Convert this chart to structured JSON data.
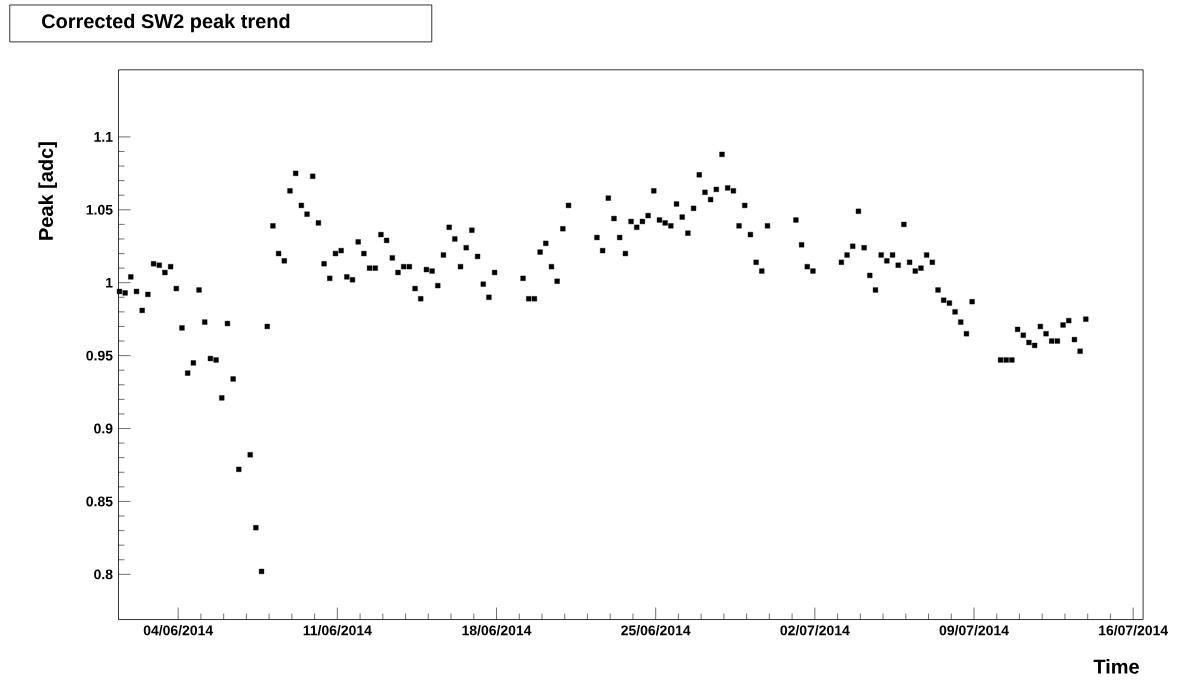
{
  "chart_data": {
    "type": "scatter",
    "title": "Corrected SW2 peak trend",
    "xlabel": "Time",
    "ylabel": "Peak [adc]",
    "marker": "square",
    "color": "#000000",
    "grid": false,
    "xlim": [
      "2014-06-01T09:00",
      "2014-07-16T10:30"
    ],
    "ylim": [
      0.769,
      1.146
    ],
    "xticks": [
      {
        "value": "2014-06-04",
        "label": "04/06/2014"
      },
      {
        "value": "2014-06-11",
        "label": "11/06/2014"
      },
      {
        "value": "2014-06-18",
        "label": "18/06/2014"
      },
      {
        "value": "2014-06-25",
        "label": "25/06/2014"
      },
      {
        "value": "2014-07-02",
        "label": "02/07/2014"
      },
      {
        "value": "2014-07-09",
        "label": "09/07/2014"
      },
      {
        "value": "2014-07-16",
        "label": "16/07/2014"
      }
    ],
    "yticks": [
      0.8,
      0.85,
      0.9,
      0.95,
      1,
      1.05,
      1.1
    ],
    "x": [
      "2014-06-01T10:00",
      "2014-06-01T16:00",
      "2014-06-01T22:00",
      "2014-06-02T04:00",
      "2014-06-02T10:00",
      "2014-06-02T16:00",
      "2014-06-02T22:00",
      "2014-06-03T04:00",
      "2014-06-03T10:00",
      "2014-06-03T16:00",
      "2014-06-03T22:00",
      "2014-06-04T04:00",
      "2014-06-04T10:00",
      "2014-06-04T16:00",
      "2014-06-04T22:00",
      "2014-06-05T04:00",
      "2014-06-05T10:00",
      "2014-06-05T16:00",
      "2014-06-05T22:00",
      "2014-06-06T04:00",
      "2014-06-06T10:00",
      "2014-06-06T16:00",
      "2014-06-07T04:00",
      "2014-06-07T10:00",
      "2014-06-07T16:00",
      "2014-06-07T22:00",
      "2014-06-08T04:00",
      "2014-06-08T10:00",
      "2014-06-08T16:00",
      "2014-06-08T22:00",
      "2014-06-09T04:00",
      "2014-06-09T10:00",
      "2014-06-09T16:00",
      "2014-06-09T22:00",
      "2014-06-10T04:00",
      "2014-06-10T10:00",
      "2014-06-10T16:00",
      "2014-06-10T22:00",
      "2014-06-11T04:00",
      "2014-06-11T10:00",
      "2014-06-11T16:00",
      "2014-06-11T22:00",
      "2014-06-12T04:00",
      "2014-06-12T10:00",
      "2014-06-12T16:00",
      "2014-06-12T22:00",
      "2014-06-13T04:00",
      "2014-06-13T10:00",
      "2014-06-13T16:00",
      "2014-06-13T22:00",
      "2014-06-14T04:00",
      "2014-06-14T10:00",
      "2014-06-14T16:00",
      "2014-06-14T22:00",
      "2014-06-15T04:00",
      "2014-06-15T10:00",
      "2014-06-15T16:00",
      "2014-06-15T22:00",
      "2014-06-16T04:00",
      "2014-06-16T10:00",
      "2014-06-16T16:00",
      "2014-06-16T22:00",
      "2014-06-17T04:00",
      "2014-06-17T10:00",
      "2014-06-17T16:00",
      "2014-06-17T22:00",
      "2014-06-19T04:00",
      "2014-06-19T10:00",
      "2014-06-19T16:00",
      "2014-06-19T22:00",
      "2014-06-20T04:00",
      "2014-06-20T10:00",
      "2014-06-20T16:00",
      "2014-06-20T22:00",
      "2014-06-21T04:00",
      "2014-06-22T10:00",
      "2014-06-22T16:00",
      "2014-06-22T22:00",
      "2014-06-23T04:00",
      "2014-06-23T10:00",
      "2014-06-23T16:00",
      "2014-06-23T22:00",
      "2014-06-24T04:00",
      "2014-06-24T10:00",
      "2014-06-24T16:00",
      "2014-06-24T22:00",
      "2014-06-25T04:00",
      "2014-06-25T10:00",
      "2014-06-25T16:00",
      "2014-06-25T22:00",
      "2014-06-26T04:00",
      "2014-06-26T10:00",
      "2014-06-26T16:00",
      "2014-06-26T22:00",
      "2014-06-27T04:00",
      "2014-06-27T10:00",
      "2014-06-27T16:00",
      "2014-06-27T22:00",
      "2014-06-28T04:00",
      "2014-06-28T10:00",
      "2014-06-28T16:00",
      "2014-06-28T22:00",
      "2014-06-29T04:00",
      "2014-06-29T10:00",
      "2014-06-29T16:00",
      "2014-06-29T22:00",
      "2014-07-01T04:00",
      "2014-07-01T10:00",
      "2014-07-01T16:00",
      "2014-07-01T22:00",
      "2014-07-03T04:00",
      "2014-07-03T10:00",
      "2014-07-03T16:00",
      "2014-07-03T22:00",
      "2014-07-04T04:00",
      "2014-07-04T10:00",
      "2014-07-04T16:00",
      "2014-07-04T22:00",
      "2014-07-05T04:00",
      "2014-07-05T10:00",
      "2014-07-05T16:00",
      "2014-07-05T22:00",
      "2014-07-06T04:00",
      "2014-07-06T10:00",
      "2014-07-06T16:00",
      "2014-07-06T22:00",
      "2014-07-07T04:00",
      "2014-07-07T10:00",
      "2014-07-07T16:00",
      "2014-07-07T22:00",
      "2014-07-08T04:00",
      "2014-07-08T10:00",
      "2014-07-08T16:00",
      "2014-07-08T22:00",
      "2014-07-10T04:00",
      "2014-07-10T10:00",
      "2014-07-10T16:00",
      "2014-07-10T22:00",
      "2014-07-11T04:00",
      "2014-07-11T10:00",
      "2014-07-11T16:00",
      "2014-07-11T22:00",
      "2014-07-12T04:00",
      "2014-07-12T10:00",
      "2014-07-12T16:00",
      "2014-07-12T22:00",
      "2014-07-13T04:00",
      "2014-07-13T10:00",
      "2014-07-13T16:00",
      "2014-07-13T22:00"
    ],
    "values": [
      0.994,
      0.993,
      1.004,
      0.994,
      0.981,
      0.992,
      1.013,
      1.012,
      1.007,
      1.011,
      0.996,
      0.969,
      0.938,
      0.945,
      0.995,
      0.973,
      0.948,
      0.947,
      0.921,
      0.972,
      0.934,
      0.872,
      0.882,
      0.832,
      0.802,
      0.97,
      1.039,
      1.02,
      1.015,
      1.063,
      1.075,
      1.053,
      1.047,
      1.073,
      1.041,
      1.013,
      1.003,
      1.02,
      1.022,
      1.004,
      1.002,
      1.028,
      1.02,
      1.01,
      1.01,
      1.033,
      1.029,
      1.017,
      1.007,
      1.011,
      1.011,
      0.996,
      0.989,
      1.009,
      1.008,
      0.998,
      1.019,
      1.038,
      1.03,
      1.011,
      1.024,
      1.036,
      1.018,
      0.999,
      0.99,
      1.007,
      1.003,
      0.989,
      0.989,
      1.021,
      1.027,
      1.011,
      1.001,
      1.037,
      1.053,
      1.031,
      1.022,
      1.058,
      1.044,
      1.031,
      1.02,
      1.042,
      1.038,
      1.042,
      1.046,
      1.063,
      1.043,
      1.041,
      1.039,
      1.054,
      1.045,
      1.034,
      1.051,
      1.074,
      1.062,
      1.057,
      1.064,
      1.088,
      1.065,
      1.063,
      1.039,
      1.053,
      1.033,
      1.014,
      1.008,
      1.039,
      1.043,
      1.026,
      1.011,
      1.008,
      1.014,
      1.019,
      1.025,
      1.049,
      1.024,
      1.005,
      0.995,
      1.019,
      1.015,
      1.019,
      1.012,
      1.04,
      1.014,
      1.008,
      1.01,
      1.019,
      1.014,
      0.995,
      0.988,
      0.986,
      0.98,
      0.973,
      0.965,
      0.987,
      0.947,
      0.947,
      0.947,
      0.968,
      0.964,
      0.959,
      0.957,
      0.97,
      0.965,
      0.96,
      0.96,
      0.971,
      0.974,
      0.961,
      0.953,
      0.975
    ]
  }
}
